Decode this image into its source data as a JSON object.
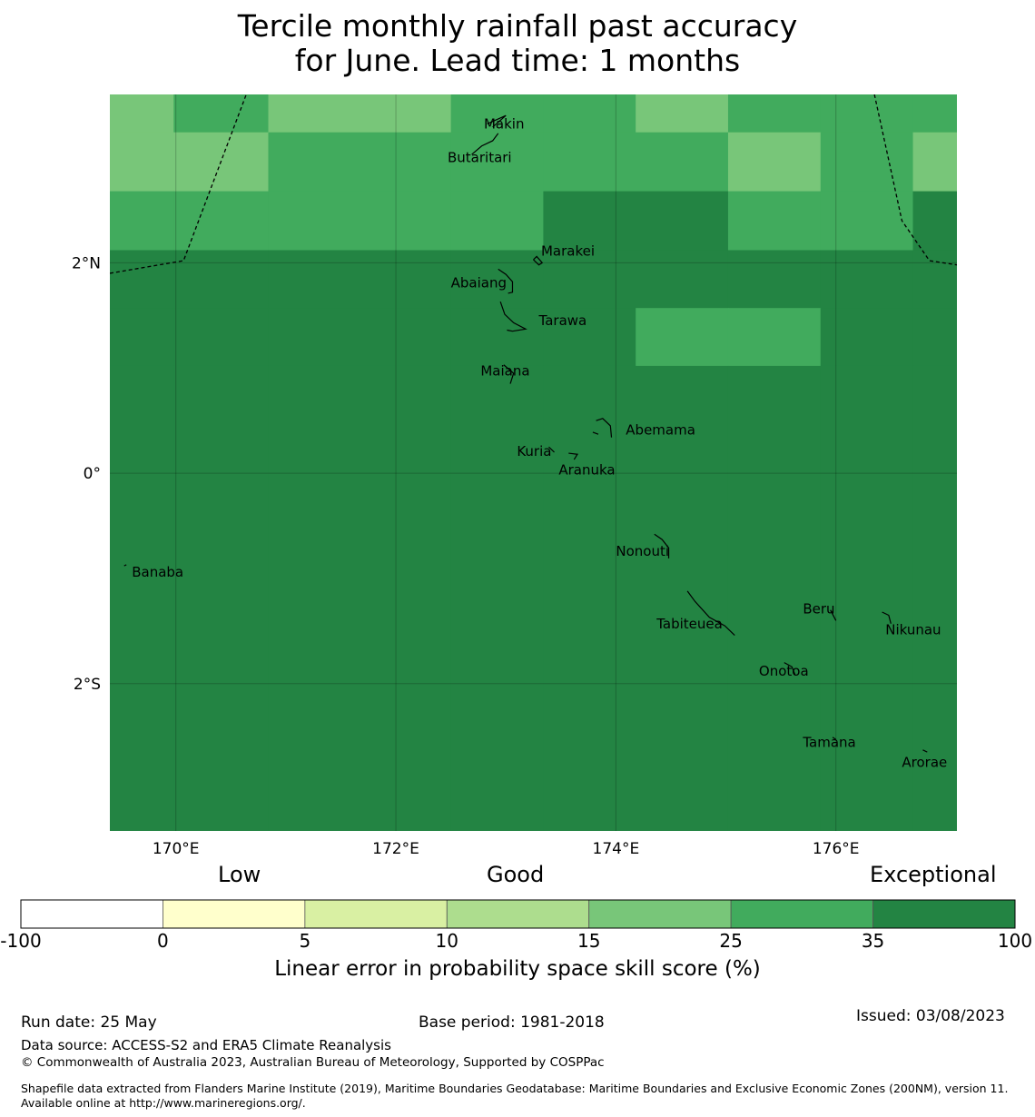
{
  "title": {
    "line1": "Tercile monthly rainfall past accuracy",
    "line2": "for June. Lead time: 1 months"
  },
  "colors": {
    "band_0_5": "#ffffcc",
    "band_5_10": "#d9f0a3",
    "band_10_15": "#addd8e",
    "band_15_25": "#78c679",
    "band_25_35": "#41ab5d",
    "band_35_100": "#238443",
    "boundary": "#000000"
  },
  "map": {
    "lon_range": [
      169.4,
      177.1
    ],
    "lat_range": [
      -3.4,
      3.6
    ],
    "x_ticks": [
      {
        "value": 170,
        "label": "170°E"
      },
      {
        "value": 172,
        "label": "172°E"
      },
      {
        "value": 174,
        "label": "174°E"
      },
      {
        "value": 176,
        "label": "176°E"
      }
    ],
    "y_ticks": [
      {
        "value": 2,
        "label": "2°N"
      },
      {
        "value": 0,
        "label": "0°"
      },
      {
        "value": -2,
        "label": "2°S"
      }
    ],
    "lon_edges": [
      169.4,
      169.98,
      170.84,
      171.99,
      172.5,
      173.34,
      174.18,
      175.02,
      175.86,
      176.7,
      177.1
    ],
    "lat_edges": [
      3.6,
      3.24,
      2.68,
      2.12,
      1.57,
      1.02,
      -3.4
    ],
    "grid_skill": [
      [
        18,
        30,
        18,
        18,
        30,
        30,
        18,
        30,
        30,
        30
      ],
      [
        18,
        18,
        30,
        30,
        30,
        30,
        30,
        18,
        30,
        18
      ],
      [
        30,
        30,
        30,
        30,
        30,
        50,
        50,
        30,
        30,
        50
      ],
      [
        50,
        50,
        50,
        50,
        50,
        50,
        50,
        50,
        50,
        50
      ],
      [
        50,
        50,
        50,
        50,
        50,
        50,
        30,
        30,
        50,
        50
      ],
      [
        50,
        50,
        50,
        50,
        50,
        50,
        50,
        50,
        50,
        50
      ]
    ],
    "places": [
      {
        "name": "Makin",
        "lon": 172.8,
        "lat": 3.32
      },
      {
        "name": "Butaritari",
        "lon": 172.47,
        "lat": 3.0
      },
      {
        "name": "Marakei",
        "lon": 173.32,
        "lat": 2.11
      },
      {
        "name": "Abaiang",
        "lon": 172.5,
        "lat": 1.81
      },
      {
        "name": "Tarawa",
        "lon": 173.3,
        "lat": 1.45
      },
      {
        "name": "Maiana",
        "lon": 172.77,
        "lat": 0.97
      },
      {
        "name": "Abemama",
        "lon": 174.09,
        "lat": 0.41
      },
      {
        "name": "Kuria",
        "lon": 173.1,
        "lat": 0.21
      },
      {
        "name": "Aranuka",
        "lon": 173.48,
        "lat": 0.03
      },
      {
        "name": "Nonouti",
        "lon": 174.0,
        "lat": -0.74
      },
      {
        "name": "Banaba",
        "lon": 169.6,
        "lat": -0.94
      },
      {
        "name": "Beru",
        "lon": 175.7,
        "lat": -1.29
      },
      {
        "name": "Tabiteuea",
        "lon": 174.37,
        "lat": -1.43
      },
      {
        "name": "Nikunau",
        "lon": 176.45,
        "lat": -1.49
      },
      {
        "name": "Onotoa",
        "lon": 175.3,
        "lat": -1.88
      },
      {
        "name": "Tamana",
        "lon": 175.7,
        "lat": -2.56
      },
      {
        "name": "Arorae",
        "lon": 176.6,
        "lat": -2.75
      }
    ],
    "atolls": [
      [
        [
          172.83,
          3.32
        ],
        [
          173.0,
          3.4
        ],
        [
          172.88,
          3.29
        ]
      ],
      [
        [
          172.69,
          3.03
        ],
        [
          172.78,
          3.11
        ],
        [
          172.88,
          3.16
        ],
        [
          172.93,
          3.23
        ]
      ],
      [
        [
          173.25,
          2.03
        ],
        [
          173.28,
          2.06
        ],
        [
          173.33,
          2.0
        ],
        [
          173.3,
          1.98
        ],
        [
          173.25,
          2.03
        ]
      ],
      [
        [
          172.93,
          1.94
        ],
        [
          173.0,
          1.89
        ],
        [
          173.06,
          1.82
        ],
        [
          173.06,
          1.72
        ],
        [
          173.02,
          1.71
        ]
      ],
      [
        [
          172.95,
          1.63
        ],
        [
          172.99,
          1.51
        ],
        [
          173.07,
          1.43
        ],
        [
          173.18,
          1.37
        ],
        [
          173.06,
          1.35
        ],
        [
          173.01,
          1.36
        ]
      ],
      [
        [
          172.98,
          1.03
        ],
        [
          173.07,
          0.95
        ],
        [
          173.04,
          0.85
        ]
      ],
      [
        [
          173.82,
          0.5
        ],
        [
          173.88,
          0.52
        ],
        [
          173.95,
          0.45
        ],
        [
          173.96,
          0.34
        ]
      ],
      [
        [
          173.79,
          0.39
        ],
        [
          173.84,
          0.37
        ]
      ],
      [
        [
          173.39,
          0.25
        ],
        [
          173.44,
          0.2
        ]
      ],
      [
        [
          173.57,
          0.19
        ],
        [
          173.65,
          0.18
        ],
        [
          173.62,
          0.13
        ]
      ],
      [
        [
          174.35,
          -0.58
        ],
        [
          174.42,
          -0.63
        ],
        [
          174.48,
          -0.71
        ],
        [
          174.48,
          -0.81
        ]
      ],
      [
        [
          174.65,
          -1.12
        ],
        [
          174.72,
          -1.22
        ],
        [
          174.85,
          -1.37
        ],
        [
          174.99,
          -1.45
        ],
        [
          175.08,
          -1.54
        ]
      ],
      [
        [
          175.95,
          -1.3
        ],
        [
          176.0,
          -1.4
        ]
      ],
      [
        [
          176.42,
          -1.32
        ],
        [
          176.48,
          -1.35
        ],
        [
          176.5,
          -1.43
        ]
      ],
      [
        [
          175.53,
          -1.8
        ],
        [
          175.6,
          -1.84
        ],
        [
          175.63,
          -1.92
        ]
      ],
      [
        [
          175.97,
          -2.51
        ],
        [
          176.0,
          -2.53
        ]
      ],
      [
        [
          176.79,
          -2.63
        ],
        [
          176.83,
          -2.65
        ]
      ],
      [
        [
          169.53,
          -0.88
        ],
        [
          169.55,
          -0.87
        ]
      ]
    ],
    "eez_boundaries": [
      [
        [
          169.4,
          1.9
        ],
        [
          170.07,
          2.02
        ],
        [
          170.64,
          3.6
        ]
      ],
      [
        [
          176.35,
          3.6
        ],
        [
          176.6,
          2.4
        ],
        [
          176.85,
          2.02
        ],
        [
          177.1,
          1.98
        ]
      ]
    ]
  },
  "colorbar": {
    "categories": [
      "Low",
      "Good",
      "Exceptional"
    ],
    "ticks": [
      "-100",
      "0",
      "5",
      "10",
      "15",
      "25",
      "35",
      "100"
    ],
    "colors": [
      "#ffffff",
      "#ffffcc",
      "#d9f0a3",
      "#addd8e",
      "#78c679",
      "#41ab5d",
      "#238443"
    ],
    "label": "Linear error in probability space skill score (%)"
  },
  "footer": {
    "run_date": "Run date: 25 May",
    "base_period": "Base period: 1981-2018",
    "issued": "Issued: 03/08/2023",
    "data_source": "Data source: ACCESS-S2 and ERA5 Climate Reanalysis",
    "copyright": "© Commonwealth of Australia 2023, Australian Bureau of Meteorology, Supported by COSPPac",
    "shapefile": "Shapefile data extracted from Flanders Marine Institute (2019), Maritime Boundaries Geodatabase: Maritime Boundaries and Exclusive Economic Zones (200NM), version 11. Available online at http://www.marineregions.org/."
  }
}
